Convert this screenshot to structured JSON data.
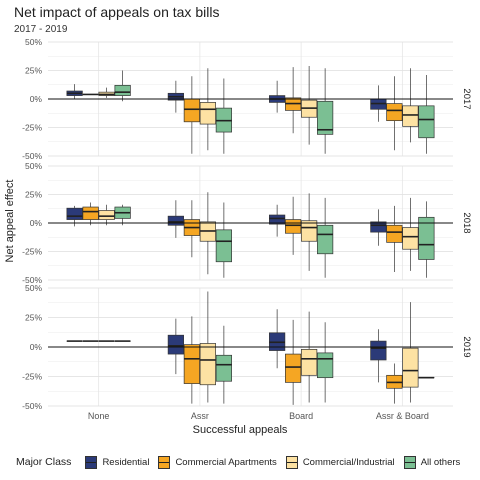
{
  "header": {
    "title": "Net impact of appeals on tax bills",
    "subtitle": "2017 - 2019"
  },
  "axes": {
    "xlabel": "Successful appeals",
    "ylabel": "Net appeal effect"
  },
  "legend": {
    "title": "Major Class",
    "items": [
      {
        "label": "Residential",
        "color": "#2b3a78"
      },
      {
        "label": "Commercial Apartments",
        "color": "#f5a623"
      },
      {
        "label": "Commercial/Industrial",
        "color": "#fde2a3"
      },
      {
        "label": "All others",
        "color": "#7bbf93"
      }
    ]
  },
  "chart_data": {
    "type": "boxplot",
    "categories": [
      "None",
      "Assr",
      "Board",
      "Assr & Board"
    ],
    "groups": [
      "Residential",
      "Commercial Apartments",
      "Commercial/Industrial",
      "All others"
    ],
    "ylim": [
      -0.5,
      0.5
    ],
    "yticks": [
      0.5,
      0.25,
      0,
      -0.25,
      -0.5
    ],
    "ytick_labels": [
      "50%",
      "25%",
      "0%",
      "-25%",
      "-50%"
    ],
    "grid": true,
    "legend_position": "bottom",
    "facets": [
      {
        "label": "2017",
        "boxes": [
          [
            {
              "min": 0.0,
              "q1": 0.03,
              "median": 0.05,
              "q3": 0.07,
              "max": 0.13
            },
            {
              "min": 0.04,
              "q1": 0.04,
              "median": 0.04,
              "q3": 0.04,
              "max": 0.04
            },
            {
              "min": 0.01,
              "q1": 0.03,
              "median": 0.04,
              "q3": 0.06,
              "max": 0.1
            },
            {
              "min": -0.02,
              "q1": 0.03,
              "median": 0.06,
              "q3": 0.12,
              "max": 0.25
            }
          ],
          [
            {
              "min": -0.12,
              "q1": -0.01,
              "median": 0.02,
              "q3": 0.05,
              "max": 0.16
            },
            {
              "min": -0.48,
              "q1": -0.2,
              "median": -0.09,
              "q3": 0.0,
              "max": 0.2
            },
            {
              "min": -0.45,
              "q1": -0.22,
              "median": -0.09,
              "q3": -0.03,
              "max": 0.27
            },
            {
              "min": -0.48,
              "q1": -0.29,
              "median": -0.19,
              "q3": -0.08,
              "max": 0.18
            }
          ],
          [
            {
              "min": -0.12,
              "q1": -0.03,
              "median": 0.0,
              "q3": 0.03,
              "max": 0.16
            },
            {
              "min": -0.3,
              "q1": -0.1,
              "median": -0.04,
              "q3": 0.01,
              "max": 0.28
            },
            {
              "min": -0.4,
              "q1": -0.16,
              "median": -0.08,
              "q3": -0.01,
              "max": 0.29
            },
            {
              "min": -0.48,
              "q1": -0.31,
              "median": -0.27,
              "q3": -0.02,
              "max": 0.27
            }
          ],
          [
            {
              "min": -0.2,
              "q1": -0.09,
              "median": -0.04,
              "q3": 0.0,
              "max": 0.12
            },
            {
              "min": -0.45,
              "q1": -0.19,
              "median": -0.1,
              "q3": -0.04,
              "max": 0.2
            },
            {
              "min": -0.38,
              "q1": -0.24,
              "median": -0.14,
              "q3": -0.06,
              "max": 0.27
            },
            {
              "min": -0.48,
              "q1": -0.34,
              "median": -0.18,
              "q3": -0.06,
              "max": 0.21
            }
          ]
        ]
      },
      {
        "label": "2018",
        "boxes": [
          [
            {
              "min": -0.03,
              "q1": 0.03,
              "median": 0.06,
              "q3": 0.13,
              "max": 0.15
            },
            {
              "min": -0.02,
              "q1": 0.03,
              "median": 0.1,
              "q3": 0.14,
              "max": 0.18
            },
            {
              "min": -0.02,
              "q1": 0.03,
              "median": 0.06,
              "q3": 0.11,
              "max": 0.16
            },
            {
              "min": -0.02,
              "q1": 0.04,
              "median": 0.09,
              "q3": 0.14,
              "max": 0.16
            }
          ],
          [
            {
              "min": -0.13,
              "q1": -0.02,
              "median": 0.01,
              "q3": 0.06,
              "max": 0.2
            },
            {
              "min": -0.3,
              "q1": -0.11,
              "median": -0.04,
              "q3": 0.03,
              "max": 0.2
            },
            {
              "min": -0.45,
              "q1": -0.16,
              "median": -0.07,
              "q3": 0.01,
              "max": 0.27
            },
            {
              "min": -0.48,
              "q1": -0.34,
              "median": -0.16,
              "q3": -0.06,
              "max": 0.18
            }
          ],
          [
            {
              "min": -0.12,
              "q1": -0.01,
              "median": 0.04,
              "q3": 0.07,
              "max": 0.16
            },
            {
              "min": -0.28,
              "q1": -0.09,
              "median": -0.02,
              "q3": 0.03,
              "max": 0.23
            },
            {
              "min": -0.42,
              "q1": -0.16,
              "median": -0.04,
              "q3": 0.02,
              "max": 0.26
            },
            {
              "min": -0.48,
              "q1": -0.27,
              "median": -0.1,
              "q3": -0.02,
              "max": 0.22
            }
          ],
          [
            {
              "min": -0.2,
              "q1": -0.08,
              "median": -0.02,
              "q3": 0.01,
              "max": 0.12
            },
            {
              "min": -0.43,
              "q1": -0.17,
              "median": -0.08,
              "q3": -0.02,
              "max": 0.15
            },
            {
              "min": -0.42,
              "q1": -0.23,
              "median": -0.12,
              "q3": -0.04,
              "max": 0.22
            },
            {
              "min": -0.48,
              "q1": -0.32,
              "median": -0.19,
              "q3": 0.05,
              "max": 0.19
            }
          ]
        ]
      },
      {
        "label": "2019",
        "boxes": [
          [
            {
              "min": 0.05,
              "q1": 0.05,
              "median": 0.05,
              "q3": 0.05,
              "max": 0.05
            },
            {
              "min": 0.05,
              "q1": 0.05,
              "median": 0.05,
              "q3": 0.05,
              "max": 0.05
            },
            {
              "min": 0.05,
              "q1": 0.05,
              "median": 0.05,
              "q3": 0.05,
              "max": 0.05
            },
            {
              "min": 0.05,
              "q1": 0.05,
              "median": 0.05,
              "q3": 0.05,
              "max": 0.05
            }
          ],
          [
            {
              "min": -0.23,
              "q1": -0.06,
              "median": 0.01,
              "q3": 0.1,
              "max": 0.24
            },
            {
              "min": -0.48,
              "q1": -0.31,
              "median": -0.1,
              "q3": 0.02,
              "max": 0.26
            },
            {
              "min": -0.47,
              "q1": -0.32,
              "median": -0.11,
              "q3": 0.03,
              "max": 0.47
            },
            {
              "min": -0.48,
              "q1": -0.29,
              "median": -0.15,
              "q3": -0.07,
              "max": 0.18
            }
          ],
          [
            {
              "min": -0.18,
              "q1": -0.03,
              "median": 0.04,
              "q3": 0.12,
              "max": 0.32
            },
            {
              "min": -0.49,
              "q1": -0.3,
              "median": -0.17,
              "q3": -0.06,
              "max": 0.23
            },
            {
              "min": -0.47,
              "q1": -0.24,
              "median": -0.1,
              "q3": -0.02,
              "max": 0.3
            },
            {
              "min": -0.47,
              "q1": -0.26,
              "median": -0.1,
              "q3": -0.05,
              "max": 0.21
            }
          ],
          [
            {
              "min": -0.3,
              "q1": -0.11,
              "median": -0.01,
              "q3": 0.05,
              "max": 0.15
            },
            {
              "min": -0.48,
              "q1": -0.35,
              "median": -0.3,
              "q3": -0.24,
              "max": -0.14
            },
            {
              "min": -0.47,
              "q1": -0.34,
              "median": -0.2,
              "q3": -0.01,
              "max": 0.38
            },
            {
              "min": -0.26,
              "q1": -0.26,
              "median": -0.26,
              "q3": -0.26,
              "max": -0.26
            }
          ]
        ]
      }
    ]
  }
}
